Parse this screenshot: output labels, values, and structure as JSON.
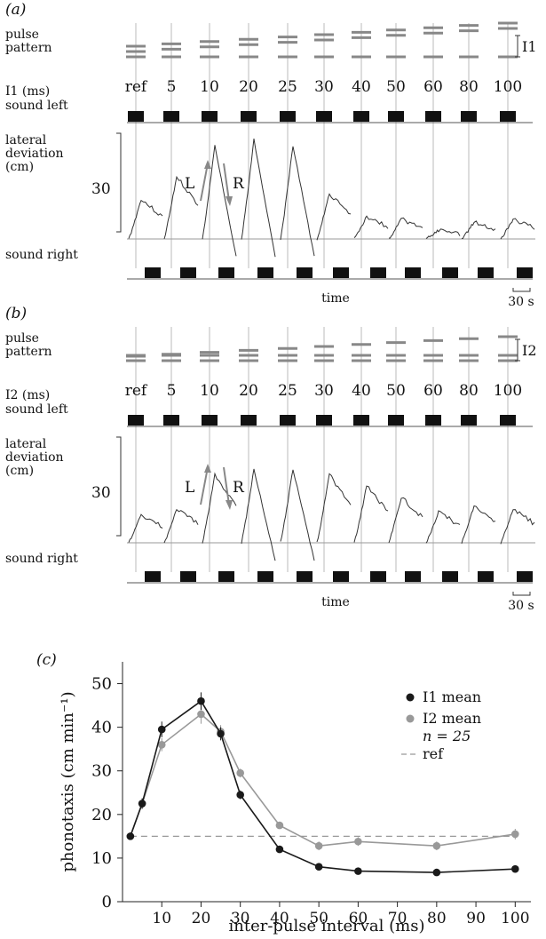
{
  "panels": [
    {
      "id": "a",
      "panel_label": "(a)",
      "pulse_pattern_label": [
        "pulse",
        "pattern"
      ],
      "interval_label": "I1",
      "row_label": "I1 (ms)",
      "sound_left_label": "sound left",
      "sound_right_label": "sound right",
      "deviation_label": [
        "lateral",
        "deviation",
        "(cm)"
      ],
      "scale_value": "30",
      "arrow_left": "L",
      "arrow_right": "R",
      "time_label": "time",
      "time_scale": "30 s",
      "peaks": [
        14,
        22,
        33,
        35,
        33,
        16,
        8,
        7,
        3,
        6,
        7
      ]
    },
    {
      "id": "b",
      "panel_label": "(b)",
      "pulse_pattern_label": [
        "pulse",
        "pattern"
      ],
      "interval_label": "I2",
      "row_label": "I2 (ms)",
      "sound_left_label": "sound left",
      "sound_right_label": "sound right",
      "deviation_label": [
        "lateral",
        "deviation",
        "(cm)"
      ],
      "scale_value": "30",
      "arrow_left": "L",
      "arrow_right": "R",
      "time_label": "time",
      "time_scale": "30 s",
      "peaks": [
        10,
        12,
        24,
        26,
        26,
        24,
        20,
        16,
        11,
        13,
        12
      ]
    }
  ],
  "stimuli": [
    "ref",
    "5",
    "10",
    "20",
    "25",
    "30",
    "40",
    "50",
    "60",
    "80",
    "100"
  ],
  "chart_data": {
    "type": "line",
    "panel_label": "(c)",
    "x": [
      2,
      5,
      10,
      20,
      25,
      30,
      40,
      50,
      60,
      80,
      100
    ],
    "series": [
      {
        "name": "I1 mean",
        "color": "#1a1a1a",
        "values": [
          15,
          22.5,
          39.5,
          46,
          38.5,
          24.5,
          12,
          8,
          7,
          6.7,
          7.5
        ],
        "errors": [
          0.8,
          1.2,
          1.8,
          2.0,
          1.5,
          1.0,
          0.6,
          0.8,
          0.6,
          0.5,
          0.7
        ]
      },
      {
        "name": "I2 mean",
        "color": "#999999",
        "values": [
          15,
          22.5,
          36,
          43,
          39,
          29.5,
          17.5,
          12.8,
          13.8,
          12.8,
          15.5
        ],
        "errors": [
          0.8,
          1.2,
          1.5,
          2.2,
          1.5,
          1.0,
          0.8,
          1.0,
          1.0,
          1.0,
          1.2
        ]
      }
    ],
    "ref_value": 15,
    "legend": [
      "I1 mean",
      "I2 mean",
      "ref"
    ],
    "n_label": "n = 25",
    "xlabel": "inter-pulse interval (ms)",
    "ylabel": "phonotaxis (cm min⁻¹)",
    "xticks": [
      10,
      20,
      30,
      40,
      50,
      60,
      70,
      80,
      90,
      100
    ],
    "yticks": [
      0,
      10,
      20,
      30,
      40,
      50
    ],
    "xlim": [
      0,
      104
    ],
    "ylim": [
      0,
      55
    ],
    "grid": false,
    "legend_position": "top-right"
  }
}
